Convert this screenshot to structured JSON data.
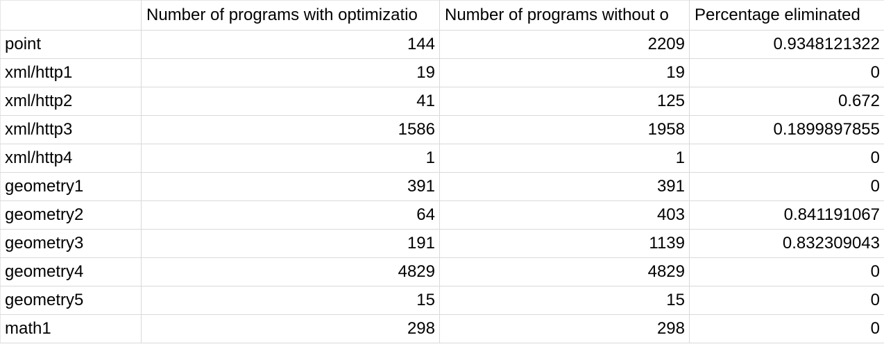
{
  "columns": [
    "",
    "Number of programs with optimizatio",
    "Number of programs without o",
    "Percentage eliminated"
  ],
  "rows": [
    {
      "name": "point",
      "with_opt": "144",
      "without_opt": "2209",
      "pct": "0.9348121322"
    },
    {
      "name": "xml/http1",
      "with_opt": "19",
      "without_opt": "19",
      "pct": "0"
    },
    {
      "name": "xml/http2",
      "with_opt": "41",
      "without_opt": "125",
      "pct": "0.672"
    },
    {
      "name": "xml/http3",
      "with_opt": "1586",
      "without_opt": "1958",
      "pct": "0.1899897855"
    },
    {
      "name": "xml/http4",
      "with_opt": "1",
      "without_opt": "1",
      "pct": "0"
    },
    {
      "name": "geometry1",
      "with_opt": "391",
      "without_opt": "391",
      "pct": "0"
    },
    {
      "name": "geometry2",
      "with_opt": "64",
      "without_opt": "403",
      "pct": "0.841191067"
    },
    {
      "name": "geometry3",
      "with_opt": "191",
      "without_opt": "1139",
      "pct": "0.832309043"
    },
    {
      "name": "geometry4",
      "with_opt": "4829",
      "without_opt": "4829",
      "pct": "0"
    },
    {
      "name": "geometry5",
      "with_opt": "15",
      "without_opt": "15",
      "pct": "0"
    },
    {
      "name": "math1",
      "with_opt": "298",
      "without_opt": "298",
      "pct": "0"
    }
  ]
}
